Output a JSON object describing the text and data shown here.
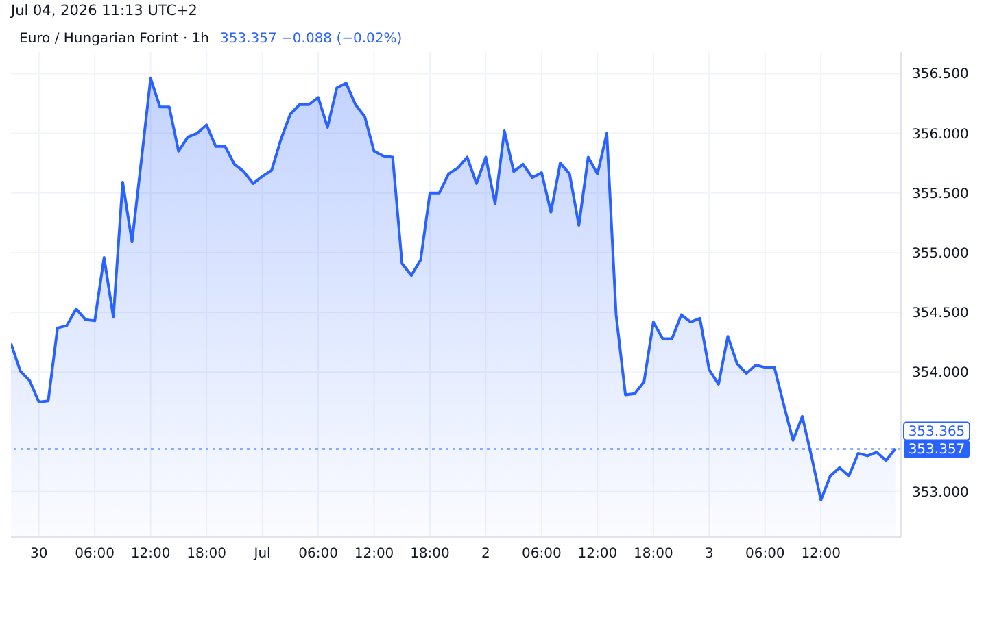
{
  "chart_data": {
    "type": "area",
    "title": "Euro / Hungarian Forint · 1h",
    "subtitle": "353.357  −0.088 (−0.02%)",
    "annotations": [
      "Jul 04, 2026 11:13 UTC+2",
      "353.365"
    ],
    "x": [
      "2026-06-29T21:00",
      "2026-06-29T22:00",
      "2026-06-29T23:00",
      "2026-06-30T00:00",
      "2026-06-30T01:00",
      "2026-06-30T02:00",
      "2026-06-30T03:00",
      "2026-06-30T04:00",
      "2026-06-30T05:00",
      "2026-06-30T06:00",
      "2026-06-30T07:00",
      "2026-06-30T08:00",
      "2026-06-30T09:00",
      "2026-06-30T10:00",
      "2026-06-30T11:00",
      "2026-06-30T12:00",
      "2026-06-30T13:00",
      "2026-06-30T14:00",
      "2026-06-30T15:00",
      "2026-06-30T16:00",
      "2026-06-30T17:00",
      "2026-06-30T18:00",
      "2026-06-30T19:00",
      "2026-06-30T20:00",
      "2026-06-30T21:00",
      "2026-06-30T22:00",
      "2026-06-30T23:00",
      "2026-07-01T00:00",
      "2026-07-01T01:00",
      "2026-07-01T02:00",
      "2026-07-01T03:00",
      "2026-07-01T04:00",
      "2026-07-01T05:00",
      "2026-07-01T06:00",
      "2026-07-01T07:00",
      "2026-07-01T08:00",
      "2026-07-01T09:00",
      "2026-07-01T10:00",
      "2026-07-01T11:00",
      "2026-07-01T12:00",
      "2026-07-01T13:00",
      "2026-07-01T14:00",
      "2026-07-01T15:00",
      "2026-07-01T16:00",
      "2026-07-01T17:00",
      "2026-07-01T18:00",
      "2026-07-01T19:00",
      "2026-07-01T20:00",
      "2026-07-01T21:00",
      "2026-07-01T22:00",
      "2026-07-01T23:00",
      "2026-07-02T00:00",
      "2026-07-02T01:00",
      "2026-07-02T02:00",
      "2026-07-02T03:00",
      "2026-07-02T04:00",
      "2026-07-02T05:00",
      "2026-07-02T06:00",
      "2026-07-02T07:00",
      "2026-07-02T08:00",
      "2026-07-02T09:00",
      "2026-07-02T10:00",
      "2026-07-02T11:00",
      "2026-07-02T12:00",
      "2026-07-02T13:00",
      "2026-07-02T14:00",
      "2026-07-02T15:00",
      "2026-07-02T16:00",
      "2026-07-02T17:00",
      "2026-07-02T18:00",
      "2026-07-02T19:00",
      "2026-07-02T20:00",
      "2026-07-02T21:00",
      "2026-07-02T22:00",
      "2026-07-02T23:00",
      "2026-07-03T00:00",
      "2026-07-03T01:00",
      "2026-07-03T02:00",
      "2026-07-03T03:00",
      "2026-07-03T04:00",
      "2026-07-03T05:00",
      "2026-07-03T06:00",
      "2026-07-03T07:00",
      "2026-07-03T08:00",
      "2026-07-03T09:00",
      "2026-07-03T10:00",
      "2026-07-03T11:00",
      "2026-07-03T12:00",
      "2026-07-03T13:00",
      "2026-07-03T14:00",
      "2026-07-03T15:00",
      "2026-07-03T16:00",
      "2026-07-03T17:00",
      "2026-07-03T18:00",
      "2026-07-03T19:00",
      "2026-07-03T20:00"
    ],
    "series": [
      {
        "color": "#2962ff",
        "values": [
          354.24,
          354.01,
          353.93,
          353.75,
          353.76,
          354.37,
          354.39,
          354.53,
          354.44,
          354.43,
          354.96,
          354.46,
          355.59,
          355.09,
          355.77,
          356.46,
          356.22,
          356.22,
          355.85,
          355.97,
          356.0,
          356.07,
          355.89,
          355.89,
          355.74,
          355.68,
          355.58,
          355.64,
          355.69,
          355.95,
          356.16,
          356.24,
          356.24,
          356.3,
          356.05,
          356.38,
          356.42,
          356.24,
          356.14,
          355.85,
          355.81,
          355.8,
          354.91,
          354.81,
          354.94,
          355.5,
          355.5,
          355.66,
          355.71,
          355.8,
          355.58,
          355.8,
          355.41,
          356.02,
          355.68,
          355.74,
          355.63,
          355.67,
          355.34,
          355.75,
          355.66,
          355.23,
          355.8,
          355.66,
          356.0,
          354.48,
          353.81,
          353.82,
          353.92,
          354.42,
          354.28,
          354.28,
          354.48,
          354.42,
          354.45,
          354.02,
          353.9,
          354.3,
          354.07,
          353.99,
          354.06,
          354.04,
          354.04,
          353.73,
          353.43,
          353.63,
          353.29,
          352.93,
          353.13,
          353.2,
          353.13,
          353.32,
          353.3,
          353.33,
          353.26,
          353.36
        ]
      }
    ],
    "xlim": [
      "2026-06-29T21:00",
      "2026-07-03T20:36"
    ],
    "xticks": [
      {
        "value": "2026-06-30T00:00",
        "label": "30"
      },
      {
        "value": "2026-06-30T06:00",
        "label": "06:00"
      },
      {
        "value": "2026-06-30T12:00",
        "label": "12:00"
      },
      {
        "value": "2026-06-30T18:00",
        "label": "18:00"
      },
      {
        "value": "2026-07-01T00:00",
        "label": "Jul"
      },
      {
        "value": "2026-07-01T06:00",
        "label": "06:00"
      },
      {
        "value": "2026-07-01T12:00",
        "label": "12:00"
      },
      {
        "value": "2026-07-01T18:00",
        "label": "18:00"
      },
      {
        "value": "2026-07-02T00:00",
        "label": "2"
      },
      {
        "value": "2026-07-02T06:00",
        "label": "06:00"
      },
      {
        "value": "2026-07-02T12:00",
        "label": "12:00"
      },
      {
        "value": "2026-07-02T18:00",
        "label": "18:00"
      },
      {
        "value": "2026-07-03T00:00",
        "label": "3"
      },
      {
        "value": "2026-07-03T06:00",
        "label": "06:00"
      },
      {
        "value": "2026-07-03T12:00",
        "label": "12:00"
      }
    ],
    "ylim": [
      352.62,
      356.68
    ],
    "yticks": [
      {
        "value": 353,
        "label": "353.000"
      },
      {
        "value": 354,
        "label": "354.000"
      },
      {
        "value": 354.5,
        "label": "354.500"
      },
      {
        "value": 355,
        "label": "355.000"
      },
      {
        "value": 355.5,
        "label": "355.500"
      },
      {
        "value": 356,
        "label": "356.000"
      },
      {
        "value": 356.5,
        "label": "356.500"
      }
    ],
    "grid": true,
    "legend": false,
    "marker": "none",
    "line_style": "solid",
    "ref_lines": [
      {
        "axis": "y",
        "value": 353.357,
        "label": "353.357",
        "color": "#2962ff",
        "line_style": "dashed"
      }
    ]
  }
}
